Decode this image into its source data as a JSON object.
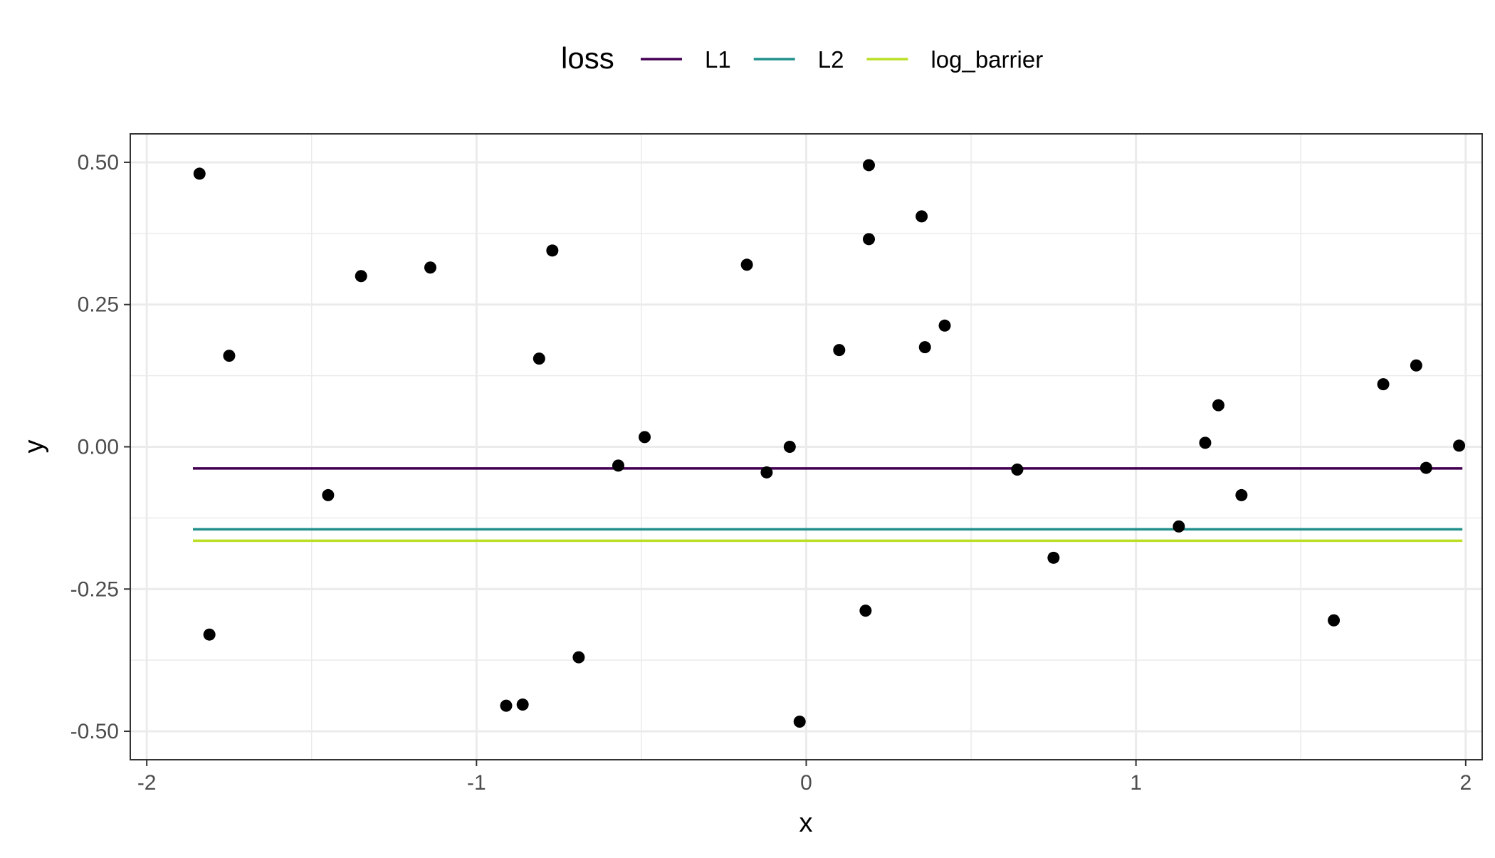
{
  "chart_data": {
    "type": "scatter",
    "title": "",
    "xlabel": "x",
    "ylabel": "y",
    "xlim": [
      -2.05,
      2.05
    ],
    "ylim": [
      -0.55,
      0.55
    ],
    "x_ticks": [
      -2,
      -1,
      0,
      1,
      2
    ],
    "x_tick_labels": [
      "-2",
      "-1",
      "0",
      "1",
      "2"
    ],
    "y_ticks": [
      -0.5,
      -0.25,
      0,
      0.25,
      0.5
    ],
    "y_tick_labels": [
      "-0.50",
      "-0.25",
      "0.00",
      "0.25",
      "0.50"
    ],
    "x_minor_ticks": [
      -1.5,
      -0.5,
      0.5,
      1.5
    ],
    "y_minor_ticks": [
      -0.375,
      -0.125,
      0.125,
      0.375
    ],
    "grid": true,
    "legend": {
      "title": "loss",
      "position": "top"
    },
    "points": {
      "color": "#000000",
      "x": [
        -1.84,
        -1.75,
        -1.81,
        -1.45,
        -1.35,
        -1.14,
        -0.81,
        -0.77,
        -0.91,
        -0.86,
        -0.69,
        -0.57,
        -0.49,
        -0.18,
        -0.12,
        -0.05,
        -0.02,
        0.1,
        0.18,
        0.19,
        0.19,
        0.35,
        0.36,
        0.42,
        0.64,
        0.75,
        1.13,
        1.21,
        1.25,
        1.32,
        1.6,
        1.75,
        1.85,
        1.88,
        1.98
      ],
      "y": [
        0.48,
        0.16,
        -0.33,
        -0.085,
        0.3,
        0.315,
        0.155,
        0.345,
        -0.455,
        -0.453,
        -0.37,
        -0.033,
        0.017,
        0.32,
        -0.045,
        0.0,
        -0.483,
        0.17,
        -0.288,
        0.495,
        0.365,
        0.405,
        0.175,
        0.213,
        -0.04,
        -0.195,
        -0.14,
        0.007,
        0.073,
        -0.085,
        -0.305,
        0.11,
        0.143,
        -0.037,
        0.002
      ]
    },
    "series": [
      {
        "name": "L1",
        "type": "hline",
        "x": [
          -1.86,
          1.99
        ],
        "y": [
          -0.038,
          -0.038
        ],
        "color": "#440154"
      },
      {
        "name": "L2",
        "type": "hline",
        "x": [
          -1.86,
          1.99
        ],
        "y": [
          -0.145,
          -0.145
        ],
        "color": "#21908C"
      },
      {
        "name": "log_barrier",
        "type": "hline",
        "x": [
          -1.86,
          1.99
        ],
        "y": [
          -0.165,
          -0.165
        ],
        "color": "#BBDF27"
      }
    ]
  }
}
